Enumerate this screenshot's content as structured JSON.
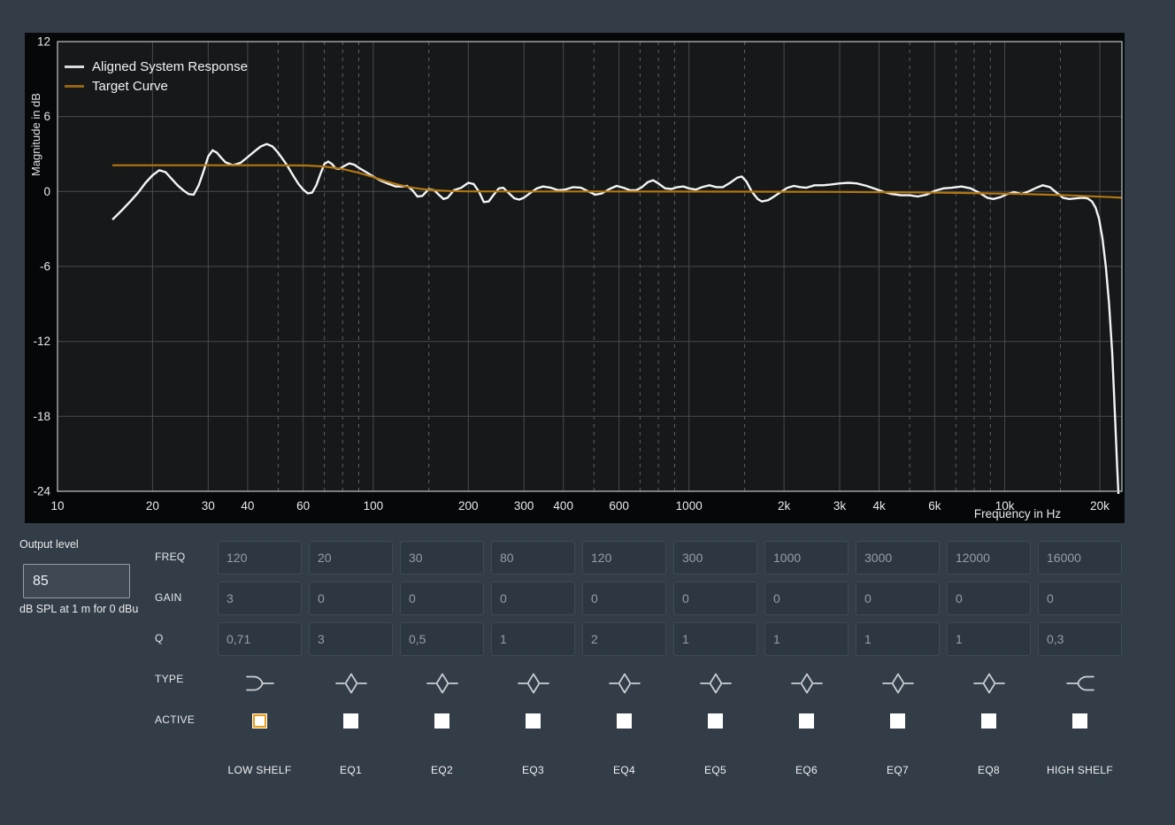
{
  "colors": {
    "page_bg": "#333d47",
    "panel_bg": "#060708",
    "plot_bg": "#16181a",
    "grid": "#474c4f",
    "grid_dashed": "#5c6164",
    "plot_border": "#c3c7c9",
    "tick_text": "#e6e9ea",
    "curve_white": "#f3f5f6",
    "curve_orange": "#b3760f",
    "legend_swatch_white": "#d9dcde",
    "legend_swatch_orange": "#956414",
    "accent_orange": "#ef9b0f",
    "icon_stroke": "#ccd1d4"
  },
  "chart_data": {
    "type": "line",
    "xscale": "log",
    "xlim": [
      10,
      23500
    ],
    "ylim": [
      -24,
      12
    ],
    "xlabel": "Frequency in Hz",
    "ylabel": "Magnitude in dB",
    "grid": true,
    "legend_position": "top-left",
    "x_ticks": [
      [
        10,
        "10"
      ],
      [
        20,
        "20"
      ],
      [
        30,
        "30"
      ],
      [
        40,
        "40"
      ],
      [
        60,
        "60"
      ],
      [
        100,
        "100"
      ],
      [
        200,
        "200"
      ],
      [
        300,
        "300"
      ],
      [
        400,
        "400"
      ],
      [
        600,
        "600"
      ],
      [
        1000,
        "1000"
      ],
      [
        2000,
        "2k"
      ],
      [
        3000,
        "3k"
      ],
      [
        4000,
        "4k"
      ],
      [
        6000,
        "6k"
      ],
      [
        10000,
        "10k"
      ],
      [
        20000,
        "20k"
      ]
    ],
    "x_gridlines_dashed": [
      50,
      70,
      80,
      90,
      150,
      500,
      700,
      800,
      900,
      1500,
      5000,
      7000,
      8000,
      9000,
      15000
    ],
    "y_ticks": [
      12,
      6,
      0,
      -6,
      -12,
      -18,
      -24
    ],
    "series": [
      {
        "id": "aligned-system-response",
        "name": "Aligned System Response",
        "color": "#f3f5f6",
        "width": 2.4,
        "points": [
          [
            15,
            -2.2
          ],
          [
            16,
            -1.5
          ],
          [
            17,
            -0.8
          ],
          [
            18,
            -0.1
          ],
          [
            19,
            0.7
          ],
          [
            20,
            1.3
          ],
          [
            21,
            1.7
          ],
          [
            22,
            1.55
          ],
          [
            23,
            1.0
          ],
          [
            24,
            0.5
          ],
          [
            25,
            0.1
          ],
          [
            26,
            -0.2
          ],
          [
            27,
            -0.25
          ],
          [
            28,
            0.5
          ],
          [
            29,
            1.6
          ],
          [
            30,
            2.8
          ],
          [
            31,
            3.3
          ],
          [
            32,
            3.1
          ],
          [
            33,
            2.7
          ],
          [
            34,
            2.35
          ],
          [
            36,
            2.1
          ],
          [
            38,
            2.3
          ],
          [
            40,
            2.75
          ],
          [
            42,
            3.2
          ],
          [
            44,
            3.6
          ],
          [
            46,
            3.8
          ],
          [
            48,
            3.6
          ],
          [
            50,
            3.1
          ],
          [
            53,
            2.2
          ],
          [
            56,
            1.2
          ],
          [
            58,
            0.6
          ],
          [
            60,
            0.15
          ],
          [
            62,
            -0.15
          ],
          [
            64,
            -0.1
          ],
          [
            66,
            0.5
          ],
          [
            68,
            1.4
          ],
          [
            70,
            2.2
          ],
          [
            72,
            2.4
          ],
          [
            74,
            2.2
          ],
          [
            76,
            1.85
          ],
          [
            78,
            1.8
          ],
          [
            81,
            2.05
          ],
          [
            84,
            2.25
          ],
          [
            87,
            2.15
          ],
          [
            90,
            1.9
          ],
          [
            95,
            1.55
          ],
          [
            100,
            1.2
          ],
          [
            106,
            0.85
          ],
          [
            112,
            0.6
          ],
          [
            118,
            0.4
          ],
          [
            124,
            0.4
          ],
          [
            128,
            0.45
          ],
          [
            133,
            0.1
          ],
          [
            138,
            -0.4
          ],
          [
            143,
            -0.35
          ],
          [
            150,
            0.2
          ],
          [
            156,
            0.1
          ],
          [
            162,
            -0.3
          ],
          [
            167,
            -0.6
          ],
          [
            172,
            -0.5
          ],
          [
            180,
            0.1
          ],
          [
            190,
            0.3
          ],
          [
            200,
            0.7
          ],
          [
            208,
            0.6
          ],
          [
            216,
            0.0
          ],
          [
            224,
            -0.85
          ],
          [
            232,
            -0.8
          ],
          [
            240,
            -0.3
          ],
          [
            250,
            0.25
          ],
          [
            258,
            0.3
          ],
          [
            268,
            -0.1
          ],
          [
            280,
            -0.55
          ],
          [
            290,
            -0.65
          ],
          [
            300,
            -0.5
          ],
          [
            315,
            -0.1
          ],
          [
            330,
            0.25
          ],
          [
            345,
            0.4
          ],
          [
            365,
            0.3
          ],
          [
            385,
            0.1
          ],
          [
            405,
            0.15
          ],
          [
            430,
            0.35
          ],
          [
            455,
            0.3
          ],
          [
            480,
            0.0
          ],
          [
            505,
            -0.25
          ],
          [
            530,
            -0.15
          ],
          [
            560,
            0.2
          ],
          [
            590,
            0.45
          ],
          [
            620,
            0.3
          ],
          [
            650,
            0.1
          ],
          [
            680,
            0.1
          ],
          [
            710,
            0.35
          ],
          [
            740,
            0.75
          ],
          [
            770,
            0.9
          ],
          [
            800,
            0.65
          ],
          [
            840,
            0.25
          ],
          [
            880,
            0.2
          ],
          [
            920,
            0.35
          ],
          [
            960,
            0.4
          ],
          [
            1000,
            0.25
          ],
          [
            1050,
            0.15
          ],
          [
            1100,
            0.35
          ],
          [
            1160,
            0.5
          ],
          [
            1220,
            0.35
          ],
          [
            1280,
            0.35
          ],
          [
            1350,
            0.7
          ],
          [
            1420,
            1.1
          ],
          [
            1470,
            1.2
          ],
          [
            1520,
            0.8
          ],
          [
            1580,
            0.0
          ],
          [
            1650,
            -0.6
          ],
          [
            1700,
            -0.8
          ],
          [
            1780,
            -0.7
          ],
          [
            1860,
            -0.4
          ],
          [
            1950,
            -0.05
          ],
          [
            2050,
            0.3
          ],
          [
            2150,
            0.45
          ],
          [
            2250,
            0.35
          ],
          [
            2350,
            0.3
          ],
          [
            2500,
            0.5
          ],
          [
            2650,
            0.5
          ],
          [
            2800,
            0.55
          ],
          [
            3000,
            0.65
          ],
          [
            3200,
            0.7
          ],
          [
            3400,
            0.65
          ],
          [
            3650,
            0.45
          ],
          [
            3900,
            0.2
          ],
          [
            4150,
            -0.05
          ],
          [
            4400,
            -0.2
          ],
          [
            4700,
            -0.3
          ],
          [
            5000,
            -0.3
          ],
          [
            5300,
            -0.4
          ],
          [
            5650,
            -0.25
          ],
          [
            6000,
            0.05
          ],
          [
            6400,
            0.25
          ],
          [
            6800,
            0.3
          ],
          [
            7300,
            0.4
          ],
          [
            7800,
            0.25
          ],
          [
            8300,
            -0.1
          ],
          [
            8800,
            -0.5
          ],
          [
            9200,
            -0.6
          ],
          [
            9700,
            -0.45
          ],
          [
            10200,
            -0.2
          ],
          [
            10700,
            -0.05
          ],
          [
            11300,
            -0.2
          ],
          [
            11900,
            0.0
          ],
          [
            12600,
            0.3
          ],
          [
            13200,
            0.5
          ],
          [
            13900,
            0.35
          ],
          [
            14600,
            -0.1
          ],
          [
            15300,
            -0.5
          ],
          [
            16000,
            -0.6
          ],
          [
            16800,
            -0.55
          ],
          [
            17600,
            -0.5
          ],
          [
            18300,
            -0.55
          ],
          [
            18900,
            -0.8
          ],
          [
            19400,
            -1.3
          ],
          [
            19900,
            -2.2
          ],
          [
            20400,
            -3.8
          ],
          [
            20900,
            -6.0
          ],
          [
            21400,
            -9.0
          ],
          [
            21900,
            -13.0
          ],
          [
            22300,
            -17.5
          ],
          [
            22700,
            -22.0
          ],
          [
            22950,
            -24.5
          ]
        ]
      },
      {
        "id": "target-curve",
        "name": "Target Curve",
        "color": "#b3760f",
        "width": 2.2,
        "points": [
          [
            15,
            2.1
          ],
          [
            30,
            2.1
          ],
          [
            50,
            2.1
          ],
          [
            62,
            2.08
          ],
          [
            70,
            2.0
          ],
          [
            80,
            1.8
          ],
          [
            90,
            1.5
          ],
          [
            100,
            1.15
          ],
          [
            110,
            0.82
          ],
          [
            120,
            0.55
          ],
          [
            130,
            0.35
          ],
          [
            142,
            0.2
          ],
          [
            155,
            0.1
          ],
          [
            175,
            0.04
          ],
          [
            200,
            0.01
          ],
          [
            300,
            0
          ],
          [
            600,
            0
          ],
          [
            1500,
            -0.01
          ],
          [
            3000,
            -0.03
          ],
          [
            5000,
            -0.07
          ],
          [
            7000,
            -0.11
          ],
          [
            9000,
            -0.15
          ],
          [
            11000,
            -0.19
          ],
          [
            13500,
            -0.25
          ],
          [
            16000,
            -0.31
          ],
          [
            19000,
            -0.39
          ],
          [
            22000,
            -0.46
          ],
          [
            23500,
            -0.5
          ]
        ]
      }
    ]
  },
  "output_level": {
    "label": "Output level",
    "value": "85",
    "caption": "dB SPL at 1 m for 0 dBu"
  },
  "eq": {
    "row_labels": {
      "freq": "FREQ",
      "gain": "GAIN",
      "q": "Q",
      "type": "TYPE",
      "active": "ACTIVE"
    },
    "bands": [
      {
        "id": "low-shelf",
        "label": "LOW SHELF",
        "type": "low-shelf",
        "freq": "120",
        "gain": "3",
        "q": "0,71",
        "active": true,
        "focused": true
      },
      {
        "id": "eq1",
        "label": "EQ1",
        "type": "bell",
        "freq": "20",
        "gain": "0",
        "q": "3",
        "active": true,
        "focused": false
      },
      {
        "id": "eq2",
        "label": "EQ2",
        "type": "bell",
        "freq": "30",
        "gain": "0",
        "q": "0,5",
        "active": true,
        "focused": false
      },
      {
        "id": "eq3",
        "label": "EQ3",
        "type": "bell",
        "freq": "80",
        "gain": "0",
        "q": "1",
        "active": true,
        "focused": false
      },
      {
        "id": "eq4",
        "label": "EQ4",
        "type": "bell",
        "freq": "120",
        "gain": "0",
        "q": "2",
        "active": true,
        "focused": false
      },
      {
        "id": "eq5",
        "label": "EQ5",
        "type": "bell",
        "freq": "300",
        "gain": "0",
        "q": "1",
        "active": true,
        "focused": false
      },
      {
        "id": "eq6",
        "label": "EQ6",
        "type": "bell",
        "freq": "1000",
        "gain": "0",
        "q": "1",
        "active": true,
        "focused": false
      },
      {
        "id": "eq7",
        "label": "EQ7",
        "type": "bell",
        "freq": "3000",
        "gain": "0",
        "q": "1",
        "active": true,
        "focused": false
      },
      {
        "id": "eq8",
        "label": "EQ8",
        "type": "bell",
        "freq": "12000",
        "gain": "0",
        "q": "1",
        "active": true,
        "focused": false
      },
      {
        "id": "high-shelf",
        "label": "HIGH SHELF",
        "type": "high-shelf",
        "freq": "16000",
        "gain": "0",
        "q": "0,3",
        "active": true,
        "focused": false
      }
    ]
  }
}
